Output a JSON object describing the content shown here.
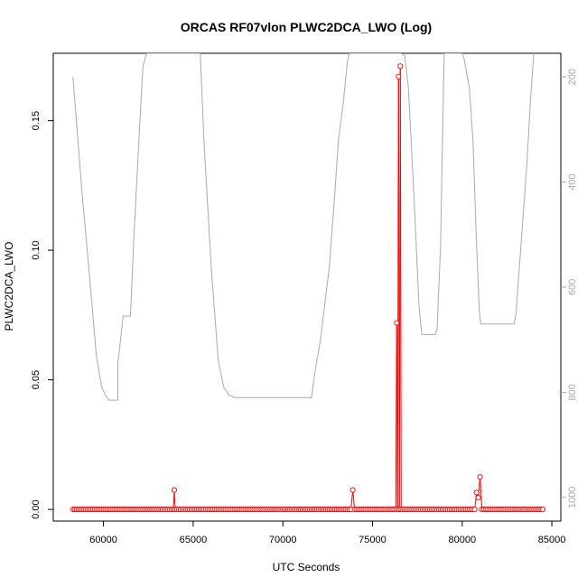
{
  "chart_data": {
    "type": "scatter",
    "title": "ORCAS RF07vlon PLWC2DCA_LWO (Log)",
    "xlabel": "UTC Seconds",
    "ylabel": "PLWC2DCA_LWO",
    "xlim": [
      57200,
      85500
    ],
    "ylim": [
      -0.0045,
      0.176
    ],
    "x_ticks": [
      60000,
      65000,
      70000,
      75000,
      80000,
      85000
    ],
    "x_tick_labels": [
      "60000",
      "65000",
      "70000",
      "75000",
      "80000",
      "85000"
    ],
    "y_ticks": [
      0.0,
      0.05,
      0.1,
      0.15
    ],
    "y_tick_labels": [
      "0.00",
      "0.05",
      "0.10",
      "0.15"
    ],
    "grid": false,
    "colors": {
      "main": "#ff0000",
      "secondary": "#aaaaaa",
      "axis": "#000000"
    },
    "series": [
      {
        "role": "primary",
        "style": "points-and-lines",
        "color": "#ff0000",
        "baseline_points": {
          "x_start": 58300,
          "x_end": 84500,
          "step": 100,
          "y": 0.0
        },
        "points": [
          {
            "x": 63950,
            "y": 0.0075
          },
          {
            "x": 73900,
            "y": 0.0075
          },
          {
            "x": 76350,
            "y": 0.072
          },
          {
            "x": 76450,
            "y": 0.167
          },
          {
            "x": 76550,
            "y": 0.171
          },
          {
            "x": 80800,
            "y": 0.0065
          },
          {
            "x": 80900,
            "y": 0.0045
          },
          {
            "x": 81000,
            "y": 0.0125
          }
        ]
      },
      {
        "role": "secondary",
        "style": "line",
        "color": "#aaaaaa",
        "axis": "right-reversed",
        "right_axis": {
          "range": [
            1045,
            155
          ],
          "ticks": [
            200,
            400,
            600,
            800,
            1000
          ],
          "tick_labels": [
            "200",
            "400",
            "600",
            "800",
            "1000"
          ],
          "color": "#aaaaaa"
        },
        "x": [
          58300,
          58800,
          59200,
          59600,
          59900,
          60100,
          60300,
          60800,
          60800,
          61100,
          61150,
          61500,
          61700,
          62100,
          62200,
          62400,
          62500,
          65400,
          65600,
          66000,
          66400,
          66700,
          67000,
          67300,
          67600,
          71600,
          71800,
          72100,
          72600,
          72900,
          73100,
          73400,
          73600,
          73700,
          73900,
          74500,
          75000,
          75500,
          76000,
          76600,
          76800,
          77000,
          77300,
          77600,
          77750,
          77900,
          78500,
          78600,
          78800,
          78900,
          79000,
          79100,
          80000,
          80100,
          80400,
          80600,
          80700,
          80800,
          80900,
          80950,
          81000,
          81050,
          81100,
          82900,
          83000,
          83300,
          83600,
          83800,
          83900,
          84000
        ],
        "y": [
          200,
          420,
          570,
          730,
          790,
          805,
          815,
          815,
          745,
          655,
          655,
          655,
          500,
          240,
          180,
          155,
          155,
          155,
          320,
          560,
          740,
          790,
          805,
          810,
          810,
          810,
          760,
          700,
          560,
          420,
          320,
          240,
          170,
          155,
          155,
          155,
          155,
          155,
          155,
          155,
          160,
          220,
          420,
          640,
          690,
          690,
          690,
          680,
          520,
          320,
          155,
          155,
          155,
          165,
          220,
          320,
          420,
          520,
          600,
          640,
          660,
          670,
          670,
          670,
          650,
          510,
          370,
          250,
          200,
          155
        ]
      }
    ]
  }
}
